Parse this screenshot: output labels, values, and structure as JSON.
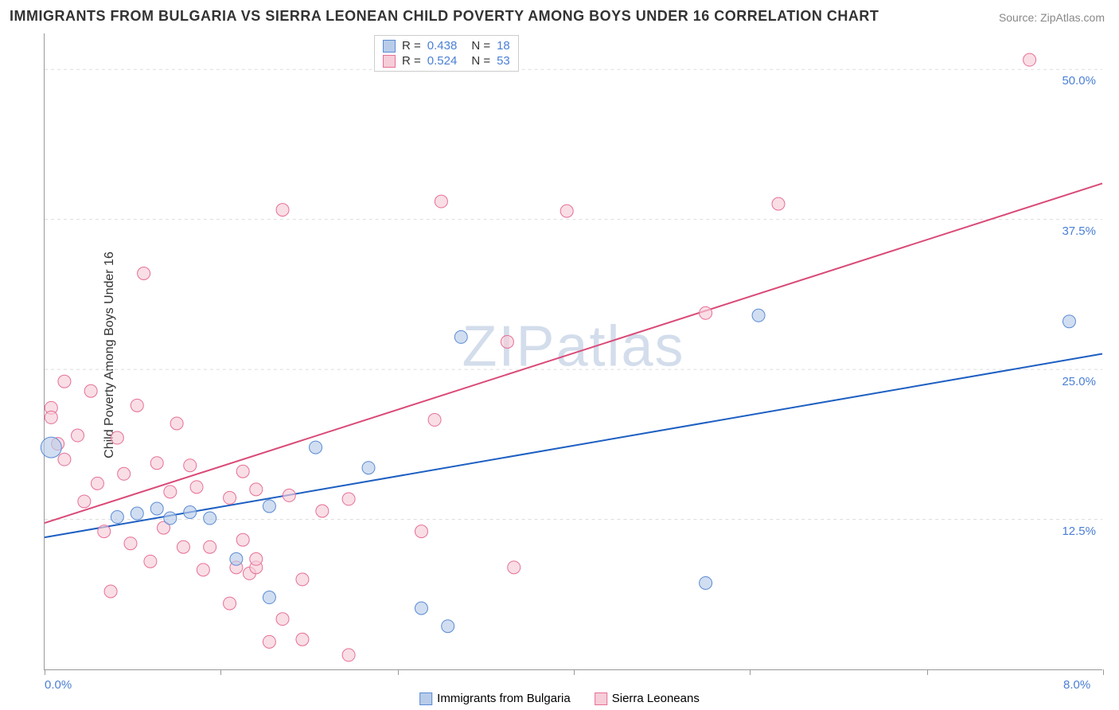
{
  "title": "IMMIGRANTS FROM BULGARIA VS SIERRA LEONEAN CHILD POVERTY AMONG BOYS UNDER 16 CORRELATION CHART",
  "source_label": "Source: ",
  "source_name": "ZipAtlas.com",
  "ylabel": "Child Poverty Among Boys Under 16",
  "watermark": "ZIPatlas",
  "chart": {
    "type": "scatter",
    "xlim": [
      0,
      8
    ],
    "ylim": [
      0,
      53
    ],
    "x_axis_labels": [
      {
        "val": 0.0,
        "text": "0.0%"
      },
      {
        "val": 8.0,
        "text": "8.0%"
      }
    ],
    "y_axis_labels": [
      {
        "val": 12.5,
        "text": "12.5%"
      },
      {
        "val": 25.0,
        "text": "25.0%"
      },
      {
        "val": 37.5,
        "text": "37.5%"
      },
      {
        "val": 50.0,
        "text": "50.0%"
      }
    ],
    "x_ticks": [
      0,
      1.33,
      2.67,
      4.0,
      5.33,
      6.67,
      8.0
    ],
    "grid_color": "#dddddd",
    "axis_color": "#999999",
    "background_color": "#ffffff",
    "series": [
      {
        "name": "Immigrants from Bulgaria",
        "legend_label": "Immigrants from Bulgaria",
        "R": "0.438",
        "N": "18",
        "marker_fill": "#b8ccea",
        "marker_stroke": "#5a8bd4",
        "marker_radius": 8,
        "trend_color": "#1d5fc2",
        "trend_width": 2,
        "trend": {
          "x1": 0,
          "y1": 11.0,
          "x2": 8.0,
          "y2": 26.3
        },
        "points": [
          {
            "x": 0.05,
            "y": 18.5,
            "r": 13
          },
          {
            "x": 0.55,
            "y": 12.7
          },
          {
            "x": 0.7,
            "y": 13.0
          },
          {
            "x": 0.85,
            "y": 13.4
          },
          {
            "x": 0.95,
            "y": 12.6
          },
          {
            "x": 1.1,
            "y": 13.1
          },
          {
            "x": 1.25,
            "y": 12.6
          },
          {
            "x": 1.45,
            "y": 9.2
          },
          {
            "x": 1.7,
            "y": 13.6
          },
          {
            "x": 1.7,
            "y": 6.0
          },
          {
            "x": 2.05,
            "y": 18.5
          },
          {
            "x": 2.45,
            "y": 16.8
          },
          {
            "x": 2.85,
            "y": 5.1
          },
          {
            "x": 3.05,
            "y": 3.6
          },
          {
            "x": 3.15,
            "y": 27.7
          },
          {
            "x": 5.0,
            "y": 7.2
          },
          {
            "x": 5.4,
            "y": 29.5
          },
          {
            "x": 7.75,
            "y": 29.0
          }
        ]
      },
      {
        "name": "Sierra Leoneans",
        "legend_label": "Sierra Leoneans",
        "R": "0.524",
        "N": "53",
        "marker_fill": "#f6cdd8",
        "marker_stroke": "#e76f95",
        "marker_radius": 8,
        "trend_color": "#d94a77",
        "trend_width": 2,
        "trend": {
          "x1": 0,
          "y1": 12.2,
          "x2": 8.0,
          "y2": 40.5
        },
        "points": [
          {
            "x": 0.05,
            "y": 21.8
          },
          {
            "x": 0.05,
            "y": 21.0
          },
          {
            "x": 0.1,
            "y": 18.8
          },
          {
            "x": 0.15,
            "y": 24.0
          },
          {
            "x": 0.15,
            "y": 17.5
          },
          {
            "x": 0.25,
            "y": 19.5
          },
          {
            "x": 0.3,
            "y": 14.0
          },
          {
            "x": 0.35,
            "y": 23.2
          },
          {
            "x": 0.4,
            "y": 15.5
          },
          {
            "x": 0.45,
            "y": 11.5
          },
          {
            "x": 0.5,
            "y": 6.5
          },
          {
            "x": 0.55,
            "y": 19.3
          },
          {
            "x": 0.6,
            "y": 16.3
          },
          {
            "x": 0.65,
            "y": 10.5
          },
          {
            "x": 0.7,
            "y": 22.0
          },
          {
            "x": 0.75,
            "y": 33.0
          },
          {
            "x": 0.8,
            "y": 9.0
          },
          {
            "x": 0.85,
            "y": 17.2
          },
          {
            "x": 0.9,
            "y": 11.8
          },
          {
            "x": 0.95,
            "y": 14.8
          },
          {
            "x": 1.0,
            "y": 20.5
          },
          {
            "x": 1.05,
            "y": 10.2
          },
          {
            "x": 1.1,
            "y": 17.0
          },
          {
            "x": 1.15,
            "y": 15.2
          },
          {
            "x": 1.2,
            "y": 8.3
          },
          {
            "x": 1.25,
            "y": 10.2
          },
          {
            "x": 1.4,
            "y": 5.5
          },
          {
            "x": 1.4,
            "y": 14.3
          },
          {
            "x": 1.45,
            "y": 8.5
          },
          {
            "x": 1.5,
            "y": 16.5
          },
          {
            "x": 1.5,
            "y": 10.8
          },
          {
            "x": 1.55,
            "y": 8.0
          },
          {
            "x": 1.6,
            "y": 15.0
          },
          {
            "x": 1.6,
            "y": 8.5
          },
          {
            "x": 1.6,
            "y": 9.2
          },
          {
            "x": 1.7,
            "y": 2.3
          },
          {
            "x": 1.8,
            "y": 38.3
          },
          {
            "x": 1.8,
            "y": 4.2
          },
          {
            "x": 1.85,
            "y": 14.5
          },
          {
            "x": 1.95,
            "y": 7.5
          },
          {
            "x": 1.95,
            "y": 2.5
          },
          {
            "x": 2.1,
            "y": 13.2
          },
          {
            "x": 2.3,
            "y": 1.2
          },
          {
            "x": 2.3,
            "y": 14.2
          },
          {
            "x": 2.85,
            "y": 11.5
          },
          {
            "x": 2.95,
            "y": 20.8
          },
          {
            "x": 3.0,
            "y": 39.0
          },
          {
            "x": 3.5,
            "y": 27.3
          },
          {
            "x": 3.55,
            "y": 8.5
          },
          {
            "x": 3.95,
            "y": 38.2
          },
          {
            "x": 5.0,
            "y": 29.7
          },
          {
            "x": 5.55,
            "y": 38.8
          },
          {
            "x": 7.45,
            "y": 50.8
          }
        ]
      }
    ]
  },
  "legend_top_labels": {
    "R": "R =",
    "N": "N ="
  }
}
